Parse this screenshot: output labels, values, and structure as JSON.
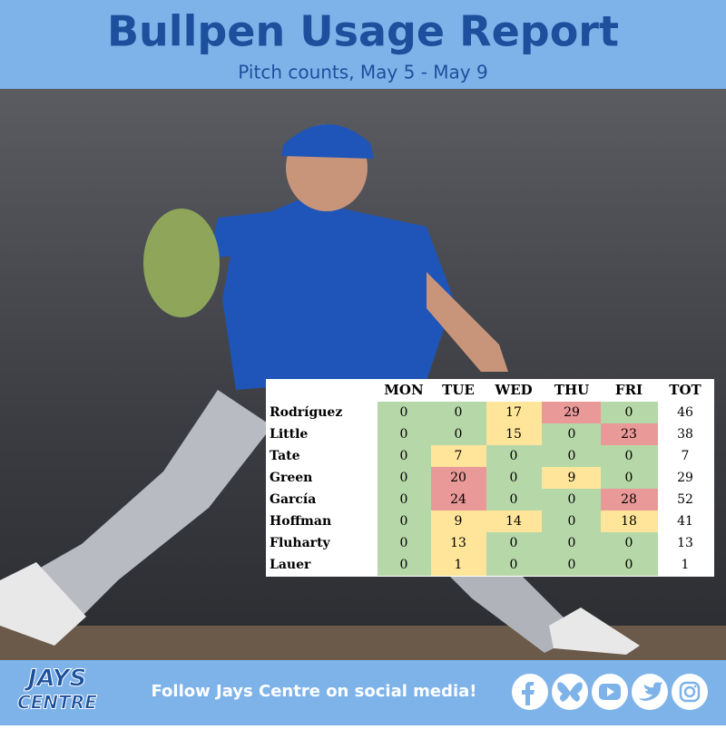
{
  "header": {
    "title": "Bullpen Usage Report",
    "subtitle": "Pitch counts, May 5 - May 9"
  },
  "table": {
    "columns": [
      "MON",
      "TUE",
      "WED",
      "THU",
      "FRI",
      "TOT"
    ],
    "rows": [
      {
        "name": "Rodríguez",
        "values": [
          0,
          0,
          17,
          29,
          0
        ],
        "total": 46,
        "colors": [
          "#b6d7a8",
          "#b6d7a8",
          "#ffe599",
          "#ea9999",
          "#b6d7a8"
        ]
      },
      {
        "name": "Little",
        "values": [
          0,
          0,
          15,
          0,
          23
        ],
        "total": 38,
        "colors": [
          "#b6d7a8",
          "#b6d7a8",
          "#ffe599",
          "#b6d7a8",
          "#ea9999"
        ]
      },
      {
        "name": "Tate",
        "values": [
          0,
          7,
          0,
          0,
          0
        ],
        "total": 7,
        "colors": [
          "#b6d7a8",
          "#ffe599",
          "#b6d7a8",
          "#b6d7a8",
          "#b6d7a8"
        ]
      },
      {
        "name": "Green",
        "values": [
          0,
          20,
          0,
          9,
          0
        ],
        "total": 29,
        "colors": [
          "#b6d7a8",
          "#ea9999",
          "#b6d7a8",
          "#ffe599",
          "#b6d7a8"
        ]
      },
      {
        "name": "García",
        "values": [
          0,
          24,
          0,
          0,
          28
        ],
        "total": 52,
        "colors": [
          "#b6d7a8",
          "#ea9999",
          "#b6d7a8",
          "#b6d7a8",
          "#ea9999"
        ]
      },
      {
        "name": "Hoffman",
        "values": [
          0,
          9,
          14,
          0,
          18
        ],
        "total": 41,
        "colors": [
          "#b6d7a8",
          "#ffe599",
          "#ffe599",
          "#b6d7a8",
          "#ffe599"
        ]
      },
      {
        "name": "Fluharty",
        "values": [
          0,
          13,
          0,
          0,
          0
        ],
        "total": 13,
        "colors": [
          "#b6d7a8",
          "#ffe599",
          "#b6d7a8",
          "#b6d7a8",
          "#b6d7a8"
        ]
      },
      {
        "name": "Lauer",
        "values": [
          0,
          1,
          0,
          0,
          0
        ],
        "total": 1,
        "colors": [
          "#b6d7a8",
          "#ffe599",
          "#b6d7a8",
          "#b6d7a8",
          "#b6d7a8"
        ]
      }
    ]
  },
  "footer": {
    "logo_top": "JAYS",
    "logo_bottom": "CENTRE",
    "cta": "Follow Jays Centre on social media!"
  }
}
